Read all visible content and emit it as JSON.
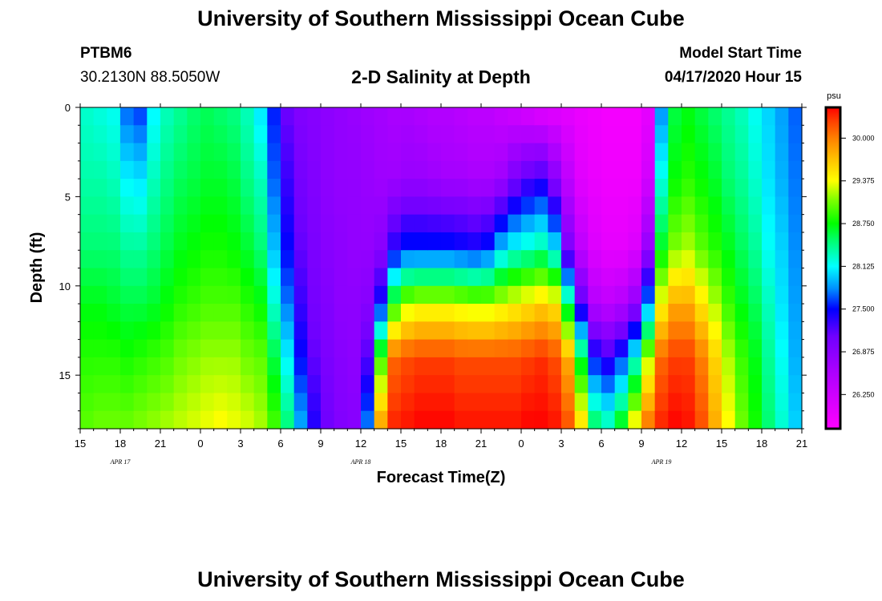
{
  "header": {
    "title": "University of Southern Mississippi Ocean Cube",
    "station_id": "PTBM6",
    "coordinates": "30.2130N 88.5050W",
    "subtitle": "2-D Salinity at Depth",
    "model_start_label": "Model Start Time",
    "model_start_value": "04/17/2020 Hour 15"
  },
  "footer": {
    "title": "University of Southern Mississippi Ocean Cube"
  },
  "chart_data": {
    "type": "heatmap",
    "title": "2-D Salinity at Depth",
    "xlabel": "Forecast Time(Z)",
    "ylabel": "Depth (ft)",
    "x_hours_range": [
      0,
      54
    ],
    "x_tick_labels": [
      "15",
      "18",
      "21",
      "0",
      "3",
      "6",
      "9",
      "12",
      "15",
      "18",
      "21",
      "0",
      "3",
      "6",
      "9",
      "12",
      "15",
      "18",
      "21"
    ],
    "date_labels": [
      {
        "label": "APR 17",
        "hour": 3
      },
      {
        "label": "APR 18",
        "hour": 21
      },
      {
        "label": "APR 19",
        "hour": 43.5
      }
    ],
    "ylim": [
      0,
      18
    ],
    "y_tick_labels": [
      "0",
      "5",
      "10",
      "15"
    ],
    "y_tick_values": [
      0,
      5,
      10,
      15
    ],
    "colorbar": {
      "unit": "psu",
      "range": [
        25.75,
        30.45
      ],
      "tick_labels": [
        "30.000",
        "29.375",
        "28.750",
        "28.125",
        "27.500",
        "26.875",
        "26.250"
      ],
      "tick_values": [
        30.0,
        29.375,
        28.75,
        28.125,
        27.5,
        26.875,
        26.25
      ],
      "stops": [
        {
          "value": 25.75,
          "color": "#ff00ff"
        },
        {
          "value": 26.6,
          "color": "#aa00ff"
        },
        {
          "value": 27.1,
          "color": "#7000ff"
        },
        {
          "value": 27.5,
          "color": "#0000ff"
        },
        {
          "value": 27.8,
          "color": "#0090ff"
        },
        {
          "value": 28.125,
          "color": "#00ffff"
        },
        {
          "value": 28.5,
          "color": "#00ff70"
        },
        {
          "value": 28.75,
          "color": "#00ff00"
        },
        {
          "value": 29.1,
          "color": "#80ff00"
        },
        {
          "value": 29.375,
          "color": "#ffff00"
        },
        {
          "value": 29.7,
          "color": "#ffc000"
        },
        {
          "value": 30.0,
          "color": "#ff8000"
        },
        {
          "value": 30.25,
          "color": "#ff4000"
        },
        {
          "value": 30.45,
          "color": "#ff0000"
        }
      ]
    },
    "depth_rows": 18,
    "hour_step": 1,
    "salinity_profiles_by_hour": [
      [
        28.25,
        28.35,
        28.5,
        28.7,
        28.85,
        29.0
      ],
      [
        28.2,
        28.35,
        28.5,
        28.7,
        28.85,
        29.05
      ],
      [
        28.15,
        28.3,
        28.5,
        28.65,
        28.85,
        29.05
      ],
      [
        27.7,
        28.1,
        28.4,
        28.6,
        28.8,
        29.05
      ],
      [
        27.6,
        28.05,
        28.4,
        28.6,
        28.85,
        29.1
      ],
      [
        28.1,
        28.3,
        28.5,
        28.65,
        28.9,
        29.15
      ],
      [
        28.3,
        28.45,
        28.6,
        28.75,
        28.95,
        29.2
      ],
      [
        28.4,
        28.55,
        28.7,
        28.85,
        29.05,
        29.25
      ],
      [
        28.5,
        28.6,
        28.75,
        28.9,
        29.1,
        29.3
      ],
      [
        28.55,
        28.65,
        28.8,
        28.95,
        29.15,
        29.35
      ],
      [
        28.5,
        28.65,
        28.8,
        28.95,
        29.15,
        29.4
      ],
      [
        28.45,
        28.6,
        28.75,
        28.95,
        29.15,
        29.35
      ],
      [
        28.3,
        28.45,
        28.65,
        28.85,
        29.05,
        29.3
      ],
      [
        28.05,
        28.3,
        28.5,
        28.75,
        29.0,
        29.2
      ],
      [
        27.55,
        27.7,
        27.95,
        28.25,
        28.6,
        28.95
      ],
      [
        27.1,
        27.3,
        27.5,
        27.75,
        28.1,
        28.5
      ],
      [
        26.95,
        27.05,
        27.15,
        27.3,
        27.5,
        27.9
      ],
      [
        26.9,
        26.95,
        27.0,
        27.05,
        27.15,
        27.4
      ],
      [
        26.85,
        26.85,
        26.9,
        26.95,
        27.0,
        27.1
      ],
      [
        26.8,
        26.8,
        26.85,
        26.85,
        26.9,
        26.95
      ],
      [
        26.75,
        26.8,
        26.8,
        26.85,
        26.85,
        26.9
      ],
      [
        26.7,
        26.75,
        26.8,
        26.9,
        27.2,
        27.8
      ],
      [
        26.65,
        26.7,
        26.9,
        27.5,
        28.9,
        29.9
      ],
      [
        26.6,
        26.7,
        27.4,
        28.8,
        30.1,
        30.35
      ],
      [
        26.6,
        26.75,
        27.6,
        29.2,
        30.2,
        30.4
      ],
      [
        26.55,
        26.75,
        27.6,
        29.3,
        30.25,
        30.45
      ],
      [
        26.5,
        26.7,
        27.6,
        29.3,
        30.25,
        30.45
      ],
      [
        26.5,
        26.65,
        27.6,
        29.3,
        30.25,
        30.45
      ],
      [
        26.45,
        26.65,
        27.55,
        29.25,
        30.2,
        30.4
      ],
      [
        26.4,
        26.6,
        27.5,
        29.2,
        30.2,
        30.4
      ],
      [
        26.4,
        26.6,
        27.6,
        29.2,
        30.2,
        30.4
      ],
      [
        26.3,
        26.7,
        28.0,
        29.3,
        30.2,
        30.4
      ],
      [
        26.2,
        27.0,
        28.2,
        29.4,
        30.2,
        30.4
      ],
      [
        26.1,
        27.2,
        28.3,
        29.5,
        30.25,
        30.45
      ],
      [
        26.0,
        27.3,
        28.4,
        29.6,
        30.3,
        30.45
      ],
      [
        26.0,
        26.9,
        28.1,
        29.5,
        30.2,
        30.4
      ],
      [
        26.0,
        26.4,
        27.0,
        28.5,
        29.8,
        30.2
      ],
      [
        25.95,
        26.05,
        26.4,
        27.2,
        28.6,
        29.6
      ],
      [
        25.9,
        25.95,
        26.1,
        26.5,
        27.5,
        28.6
      ],
      [
        25.85,
        25.9,
        26.0,
        26.4,
        27.3,
        28.4
      ],
      [
        25.85,
        25.9,
        26.0,
        26.5,
        27.6,
        28.8
      ],
      [
        25.85,
        25.9,
        26.1,
        26.8,
        28.2,
        29.5
      ],
      [
        26.0,
        26.2,
        26.8,
        27.8,
        29.2,
        30.1
      ],
      [
        27.8,
        28.2,
        28.7,
        29.4,
        30.1,
        30.35
      ],
      [
        28.6,
        28.75,
        29.1,
        29.8,
        30.25,
        30.45
      ],
      [
        28.7,
        28.85,
        29.2,
        29.8,
        30.25,
        30.4
      ],
      [
        28.6,
        28.75,
        29.0,
        29.5,
        30.0,
        30.2
      ],
      [
        28.5,
        28.65,
        28.85,
        29.2,
        29.6,
        29.8
      ],
      [
        28.4,
        28.5,
        28.7,
        28.9,
        29.2,
        29.4
      ],
      [
        28.3,
        28.4,
        28.55,
        28.7,
        28.9,
        29.05
      ],
      [
        28.15,
        28.25,
        28.4,
        28.55,
        28.7,
        28.8
      ],
      [
        28.0,
        28.05,
        28.15,
        28.3,
        28.4,
        28.5
      ],
      [
        27.85,
        27.9,
        28.0,
        28.05,
        28.15,
        28.25
      ],
      [
        27.7,
        27.75,
        27.8,
        27.85,
        27.9,
        28.0
      ]
    ],
    "profile_depths_ft": [
      0,
      4,
      8,
      11,
      14,
      18
    ]
  }
}
